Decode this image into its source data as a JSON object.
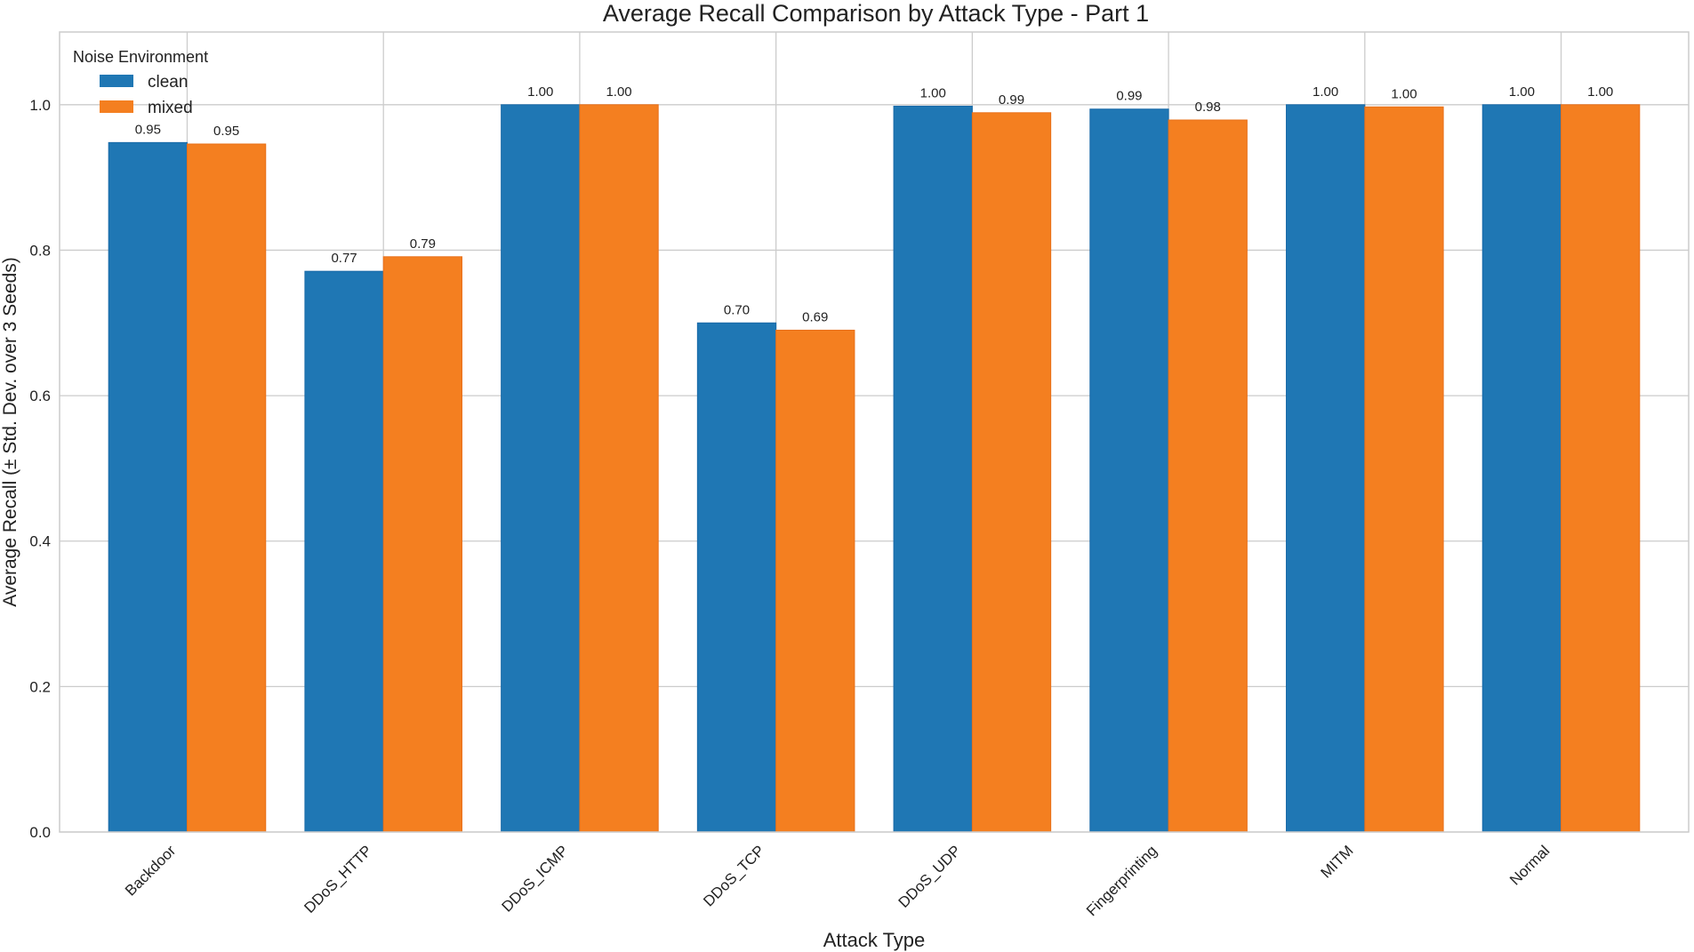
{
  "chart_data": {
    "type": "bar",
    "title": "Average Recall Comparison by Attack Type - Part 1",
    "xlabel": "Attack Type",
    "ylabel": "Average Recall (± Std. Dev. over 3 Seeds)",
    "categories": [
      "Backdoor",
      "DDoS_HTTP",
      "DDoS_ICMP",
      "DDoS_TCP",
      "DDoS_UDP",
      "Fingerprinting",
      "MITM",
      "Normal"
    ],
    "series": [
      {
        "name": "clean",
        "color": "#1f77b4",
        "values": [
          0.948,
          0.771,
          1.0,
          0.7,
          0.998,
          0.994,
          1.0,
          1.0
        ],
        "labels": [
          "0.95",
          "0.77",
          "1.00",
          "0.70",
          "1.00",
          "0.99",
          "1.00",
          "1.00"
        ]
      },
      {
        "name": "mixed",
        "color": "#f47f20",
        "values": [
          0.946,
          0.791,
          1.0,
          0.69,
          0.989,
          0.979,
          0.997,
          1.0
        ],
        "labels": [
          "0.95",
          "0.79",
          "1.00",
          "0.69",
          "0.99",
          "0.98",
          "1.00",
          "1.00"
        ]
      }
    ],
    "ylim": [
      0,
      1.1
    ],
    "xlim": [
      -0.65,
      7.65
    ],
    "yticks": [
      "0.0",
      "0.2",
      "0.4",
      "0.6",
      "0.8",
      "1.0"
    ],
    "grid": true,
    "legend": {
      "title": "Noise Environment",
      "placement": "top-left"
    }
  }
}
